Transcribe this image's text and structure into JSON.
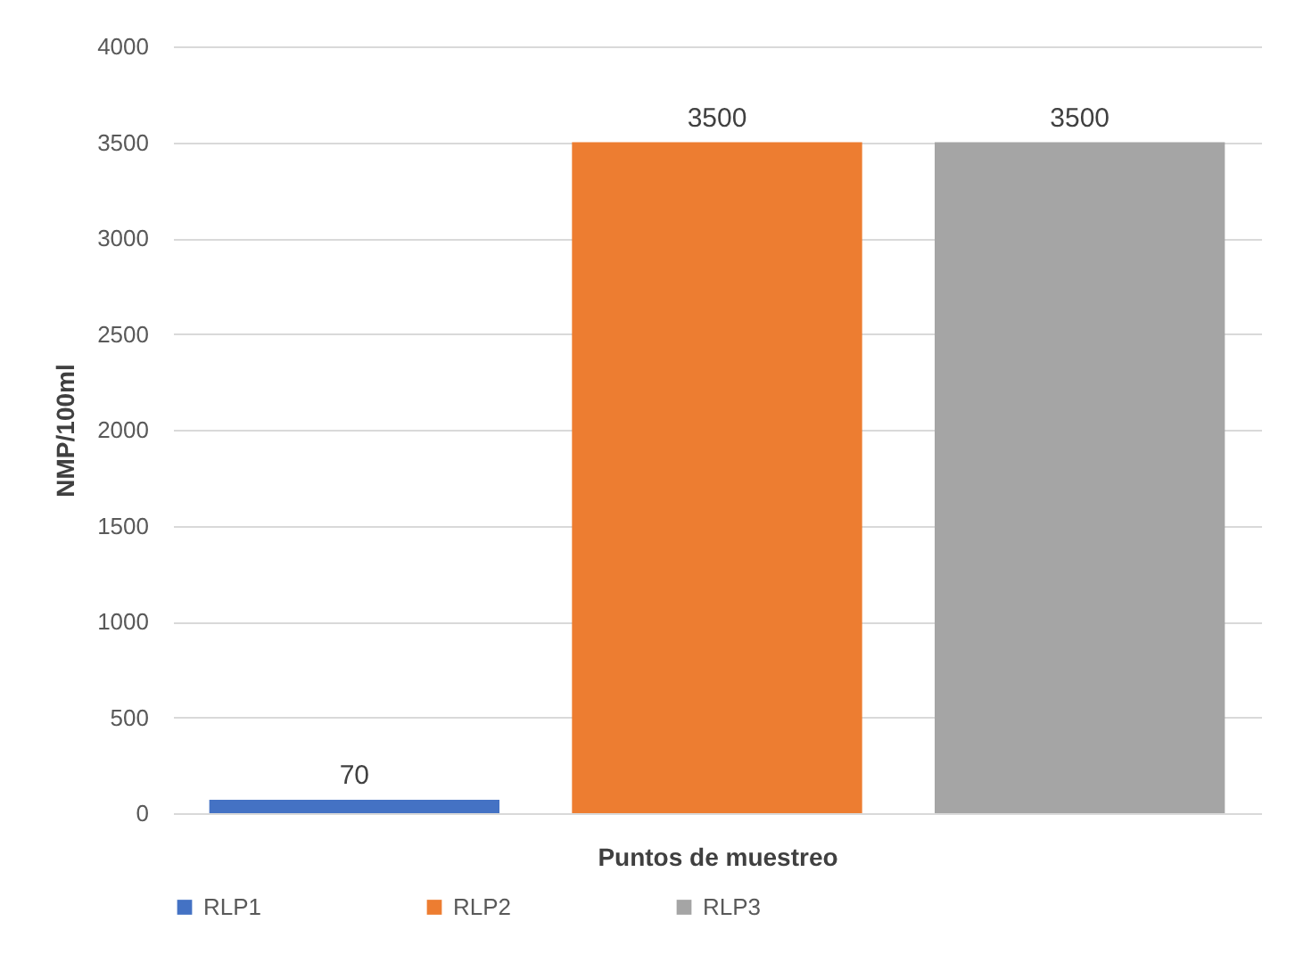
{
  "chart_data": {
    "type": "bar",
    "categories": [
      null,
      null,
      null
    ],
    "xlabel": "Puntos de muestreo",
    "ylabel": "NMP/100ml",
    "series": [
      {
        "name": "RLP1",
        "color": "#4472c4",
        "values": [
          70,
          null,
          null
        ]
      },
      {
        "name": "RLP2",
        "color": "#ed7d31",
        "values": [
          null,
          3500,
          null
        ]
      },
      {
        "name": "RLP3",
        "color": "#a5a5a5",
        "values": [
          null,
          null,
          3500
        ]
      }
    ],
    "ylim": [
      0,
      4000
    ],
    "yticks": [
      0,
      500,
      1000,
      1500,
      2000,
      2500,
      3000,
      3500,
      4000
    ],
    "grid": "y",
    "legend": "bottom",
    "data_labels": true
  }
}
